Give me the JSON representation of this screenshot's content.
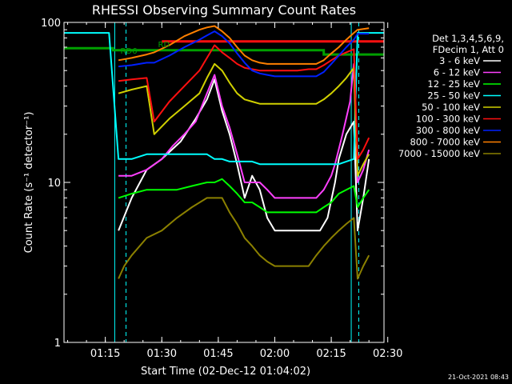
{
  "chart_data": {
    "type": "line",
    "title": "RHESSI Observing Summary Count Rates",
    "xlabel": "Start Time (02-Dec-12 01:04:02)",
    "ylabel": "Count Rate (s⁻¹ detector⁻¹)",
    "yscale": "log",
    "ylim": [
      1,
      100
    ],
    "xlim_minutes": [
      4.03,
      89.0
    ],
    "x_tick_labels": [
      "01:15",
      "01:30",
      "01:45",
      "02:00",
      "02:15",
      "02:30"
    ],
    "x_tick_minutes": [
      15,
      30,
      45,
      60,
      75,
      90
    ],
    "y_tick_labels": [
      "1",
      "10",
      "100"
    ],
    "y_tick_values": [
      1,
      10,
      100
    ],
    "legend_header": [
      "Det 1,3,4,5,6,9,",
      "FDecim 1, Att 0"
    ],
    "annotations": [
      {
        "text": "RD6",
        "x_min": 19,
        "y": 64,
        "color": "#00a000"
      },
      {
        "text": "RD",
        "x_min": 29,
        "y": 70,
        "color": "#00a000"
      }
    ],
    "series": [
      {
        "name": "3 - 6 keV",
        "color": "#ffffff",
        "points": [
          [
            18.5,
            5
          ],
          [
            22,
            8
          ],
          [
            26,
            12
          ],
          [
            30,
            14
          ],
          [
            35,
            18
          ],
          [
            39,
            25
          ],
          [
            42,
            33
          ],
          [
            44,
            44
          ],
          [
            46,
            28
          ],
          [
            48,
            20
          ],
          [
            50,
            13
          ],
          [
            52,
            8
          ],
          [
            54,
            11
          ],
          [
            56,
            9
          ],
          [
            58,
            6
          ],
          [
            60,
            5
          ],
          [
            63,
            5
          ],
          [
            66,
            5
          ],
          [
            69,
            5
          ],
          [
            72,
            5
          ],
          [
            74,
            6
          ],
          [
            76,
            10
          ],
          [
            77,
            14
          ],
          [
            79,
            20
          ],
          [
            81,
            24
          ],
          [
            82,
            5
          ],
          [
            83.5,
            8
          ],
          [
            85,
            14
          ]
        ]
      },
      {
        "name": "6 - 12 keV",
        "color": "#ff40ff",
        "points": [
          [
            18.5,
            11
          ],
          [
            22,
            11
          ],
          [
            26,
            12
          ],
          [
            30,
            14
          ],
          [
            33,
            17
          ],
          [
            36,
            20
          ],
          [
            39,
            24
          ],
          [
            42,
            36
          ],
          [
            44,
            47
          ],
          [
            46,
            30
          ],
          [
            48,
            22
          ],
          [
            50,
            15
          ],
          [
            52,
            10
          ],
          [
            54,
            10
          ],
          [
            56,
            10
          ],
          [
            58,
            9
          ],
          [
            60,
            8
          ],
          [
            63,
            8
          ],
          [
            66,
            8
          ],
          [
            69,
            8
          ],
          [
            71,
            8
          ],
          [
            73,
            9
          ],
          [
            75,
            11
          ],
          [
            76,
            13
          ],
          [
            78,
            20
          ],
          [
            80,
            32
          ],
          [
            81,
            55
          ],
          [
            82,
            10
          ],
          [
            83.5,
            12
          ],
          [
            85,
            16
          ]
        ]
      },
      {
        "name": "12 - 25 keV",
        "color": "#00ff00",
        "points": [
          [
            18.5,
            8
          ],
          [
            22,
            8.5
          ],
          [
            26,
            9
          ],
          [
            30,
            9
          ],
          [
            34,
            9
          ],
          [
            38,
            9.5
          ],
          [
            42,
            10
          ],
          [
            44,
            10
          ],
          [
            46,
            10.5
          ],
          [
            48,
            9.5
          ],
          [
            50,
            8.5
          ],
          [
            52,
            7.5
          ],
          [
            54,
            7.5
          ],
          [
            56,
            7
          ],
          [
            58,
            6.5
          ],
          [
            60,
            6.5
          ],
          [
            63,
            6.5
          ],
          [
            66,
            6.5
          ],
          [
            69,
            6.5
          ],
          [
            71,
            6.5
          ],
          [
            73,
            7
          ],
          [
            75,
            7.5
          ],
          [
            77,
            8.5
          ],
          [
            79,
            9
          ],
          [
            81,
            9.5
          ],
          [
            82,
            7
          ],
          [
            83.5,
            8
          ],
          [
            85,
            9
          ]
        ]
      },
      {
        "name": "25 - 50 keV",
        "color": "#00ffff",
        "points": [
          [
            4.03,
            86
          ],
          [
            16,
            86
          ],
          [
            18.5,
            14
          ],
          [
            22,
            14
          ],
          [
            26,
            15
          ],
          [
            30,
            15
          ],
          [
            34,
            15
          ],
          [
            38,
            15
          ],
          [
            42,
            15
          ],
          [
            44,
            14
          ],
          [
            46,
            14
          ],
          [
            48,
            13.5
          ],
          [
            50,
            13.5
          ],
          [
            52,
            13.5
          ],
          [
            54,
            13.5
          ],
          [
            56,
            13
          ],
          [
            58,
            13
          ],
          [
            60,
            13
          ],
          [
            63,
            13
          ],
          [
            66,
            13
          ],
          [
            69,
            13
          ],
          [
            71,
            13
          ],
          [
            73,
            13
          ],
          [
            75,
            13
          ],
          [
            77,
            13
          ],
          [
            79,
            13.5
          ],
          [
            81,
            14
          ],
          [
            82,
            86
          ],
          [
            89,
            86
          ]
        ]
      },
      {
        "name": "50 - 100 keV",
        "color": "#d0d000",
        "points": [
          [
            18.5,
            36
          ],
          [
            22,
            38
          ],
          [
            26,
            40
          ],
          [
            28,
            20
          ],
          [
            32,
            25
          ],
          [
            36,
            30
          ],
          [
            40,
            36
          ],
          [
            42,
            45
          ],
          [
            44,
            55
          ],
          [
            46,
            50
          ],
          [
            48,
            42
          ],
          [
            50,
            36
          ],
          [
            52,
            33
          ],
          [
            54,
            32
          ],
          [
            56,
            31
          ],
          [
            58,
            31
          ],
          [
            60,
            31
          ],
          [
            63,
            31
          ],
          [
            66,
            31
          ],
          [
            69,
            31
          ],
          [
            71,
            31
          ],
          [
            73,
            33
          ],
          [
            75,
            36
          ],
          [
            77,
            40
          ],
          [
            79,
            45
          ],
          [
            81,
            52
          ],
          [
            82,
            11
          ],
          [
            83.5,
            13
          ],
          [
            85,
            15
          ]
        ]
      },
      {
        "name": "100 - 300 keV",
        "color": "#ff1010",
        "points": [
          [
            18.5,
            43
          ],
          [
            22,
            44
          ],
          [
            26,
            45
          ],
          [
            28,
            24
          ],
          [
            32,
            32
          ],
          [
            36,
            40
          ],
          [
            40,
            50
          ],
          [
            42,
            60
          ],
          [
            44,
            72
          ],
          [
            46,
            65
          ],
          [
            48,
            60
          ],
          [
            50,
            55
          ],
          [
            52,
            52
          ],
          [
            54,
            51
          ],
          [
            56,
            50
          ],
          [
            58,
            50
          ],
          [
            60,
            50
          ],
          [
            63,
            50
          ],
          [
            66,
            50
          ],
          [
            69,
            51
          ],
          [
            71,
            51
          ],
          [
            73,
            54
          ],
          [
            75,
            58
          ],
          [
            77,
            62
          ],
          [
            79,
            65
          ],
          [
            81,
            68
          ],
          [
            82,
            14
          ],
          [
            83.5,
            16
          ],
          [
            85,
            19
          ]
        ]
      },
      {
        "name": "300 - 800 keV",
        "color": "#0020ff",
        "points": [
          [
            18.5,
            53
          ],
          [
            22,
            54
          ],
          [
            26,
            56
          ],
          [
            28,
            56
          ],
          [
            32,
            62
          ],
          [
            36,
            70
          ],
          [
            40,
            78
          ],
          [
            42,
            83
          ],
          [
            44,
            88
          ],
          [
            46,
            82
          ],
          [
            48,
            74
          ],
          [
            50,
            64
          ],
          [
            52,
            56
          ],
          [
            54,
            50
          ],
          [
            56,
            48
          ],
          [
            58,
            47
          ],
          [
            60,
            46
          ],
          [
            63,
            46
          ],
          [
            66,
            46
          ],
          [
            69,
            46
          ],
          [
            71,
            46
          ],
          [
            73,
            49
          ],
          [
            75,
            55
          ],
          [
            77,
            62
          ],
          [
            79,
            70
          ],
          [
            81,
            78
          ],
          [
            82,
            85
          ],
          [
            85,
            85
          ]
        ]
      },
      {
        "name": "800 - 7000 keV",
        "color": "#ff8000",
        "points": [
          [
            18.5,
            58
          ],
          [
            22,
            60
          ],
          [
            26,
            63
          ],
          [
            28,
            65
          ],
          [
            32,
            72
          ],
          [
            36,
            82
          ],
          [
            40,
            90
          ],
          [
            42,
            93
          ],
          [
            44,
            95
          ],
          [
            46,
            88
          ],
          [
            48,
            80
          ],
          [
            50,
            70
          ],
          [
            52,
            62
          ],
          [
            54,
            58
          ],
          [
            56,
            56
          ],
          [
            58,
            55
          ],
          [
            60,
            55
          ],
          [
            63,
            55
          ],
          [
            66,
            55
          ],
          [
            69,
            55
          ],
          [
            71,
            55
          ],
          [
            73,
            58
          ],
          [
            75,
            64
          ],
          [
            77,
            70
          ],
          [
            79,
            78
          ],
          [
            81,
            86
          ],
          [
            82,
            90
          ],
          [
            85,
            92
          ]
        ]
      },
      {
        "name": "7000 - 15000 keV",
        "color": "#8b8000",
        "points": [
          [
            18.5,
            2.5
          ],
          [
            20,
            3
          ],
          [
            22,
            3.5
          ],
          [
            26,
            4.5
          ],
          [
            30,
            5
          ],
          [
            34,
            6
          ],
          [
            38,
            7
          ],
          [
            42,
            8
          ],
          [
            44,
            8
          ],
          [
            46,
            8
          ],
          [
            48,
            6.5
          ],
          [
            50,
            5.5
          ],
          [
            52,
            4.5
          ],
          [
            54,
            4
          ],
          [
            56,
            3.5
          ],
          [
            58,
            3.2
          ],
          [
            60,
            3
          ],
          [
            63,
            3
          ],
          [
            66,
            3
          ],
          [
            69,
            3
          ],
          [
            71,
            3.5
          ],
          [
            73,
            4
          ],
          [
            75,
            4.5
          ],
          [
            77,
            5
          ],
          [
            79,
            5.5
          ],
          [
            81,
            6
          ],
          [
            82,
            2.5
          ],
          [
            83.5,
            3
          ],
          [
            85,
            3.5
          ]
        ]
      }
    ],
    "reference_lines": [
      {
        "name": "RD6",
        "color": "#00a000",
        "points": [
          [
            4.03,
            69
          ],
          [
            17,
            69
          ],
          [
            17,
            67
          ],
          [
            73,
            67
          ],
          [
            73,
            63
          ],
          [
            89,
            63
          ]
        ]
      },
      {
        "name": "RD",
        "color": "#ff1010",
        "points": [
          [
            30,
            76
          ],
          [
            55,
            76
          ],
          [
            58,
            76
          ],
          [
            73,
            76
          ],
          [
            75,
            76
          ],
          [
            89,
            76
          ]
        ]
      }
    ],
    "vertical_markers": [
      {
        "x": 17.5,
        "color": "#00ffff",
        "style": "solid"
      },
      {
        "x": 20.5,
        "color": "#00ffff",
        "style": "dashed"
      },
      {
        "x": 80.3,
        "color": "#00ffff",
        "style": "solid"
      },
      {
        "x": 82.3,
        "color": "#00ffff",
        "style": "dashed"
      },
      {
        "x": 93,
        "color": "#00ffff",
        "style": "dashed"
      }
    ]
  },
  "footer": {
    "timestamp": "21-Oct-2021 08:43"
  }
}
